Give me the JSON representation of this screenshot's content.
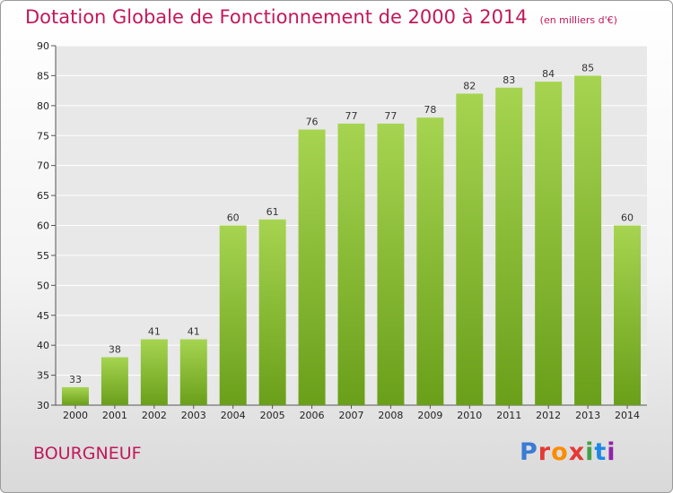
{
  "title": "Dotation Globale de Fonctionnement de 2000 à 2014",
  "unit": "(en milliers d'€)",
  "city": "BOURGNEUF",
  "logo": {
    "letters": [
      "P",
      "r",
      "o",
      "x",
      "i",
      "t",
      "i"
    ],
    "colors": [
      "#3a7bd5",
      "#e53935",
      "#fb8c00",
      "#e53935",
      "#43a047",
      "#1e88e5",
      "#8e24aa"
    ]
  },
  "colors": {
    "bar_top": "#a6d451",
    "bar_bottom": "#6a9f1a",
    "title": "#c2185b"
  },
  "chart_data": {
    "type": "bar",
    "title": "Dotation Globale de Fonctionnement de 2000 à 2014",
    "categories": [
      "2000",
      "2001",
      "2002",
      "2003",
      "2004",
      "2005",
      "2006",
      "2007",
      "2008",
      "2009",
      "2010",
      "2011",
      "2012",
      "2013",
      "2014"
    ],
    "values": [
      33,
      38,
      41,
      41,
      60,
      61,
      76,
      77,
      77,
      78,
      82,
      83,
      84,
      85,
      60
    ],
    "ylim": [
      30,
      90
    ],
    "yticks": [
      30,
      35,
      40,
      45,
      50,
      55,
      60,
      65,
      70,
      75,
      80,
      85,
      90
    ],
    "xlabel": "",
    "ylabel": "",
    "grid": true,
    "legend": "none"
  }
}
